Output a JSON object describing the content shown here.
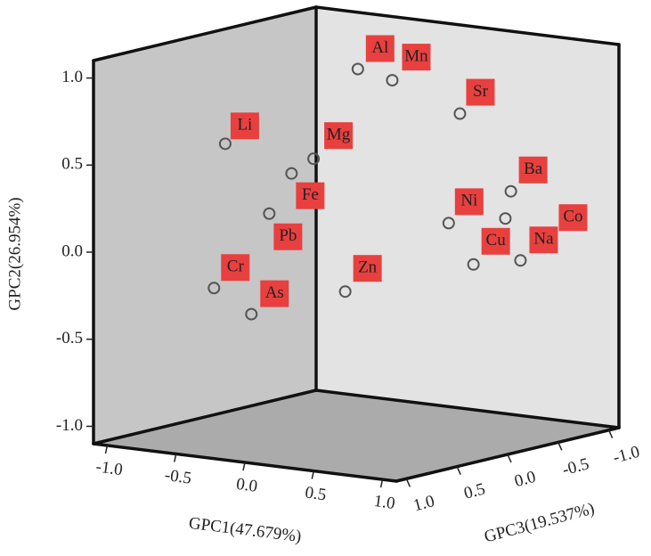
{
  "chart_data": {
    "type": "scatter3d",
    "x_label": "GPC1(47.679%)",
    "y_label": "GPC2(26.954%)",
    "z_label": "GPC3(19.537%)",
    "labels": [
      "Al",
      "Mn",
      "Sr",
      "Li",
      "Mg",
      "Fe",
      "Pb",
      "Ba",
      "Ni",
      "Co",
      "Cu",
      "Na",
      "Cr",
      "As",
      "Zn"
    ],
    "x": [
      -0.15,
      0.1,
      0.43,
      -0.79,
      -0.31,
      -0.47,
      -0.47,
      0.8,
      0.51,
      0.76,
      0.69,
      0.87,
      -0.71,
      -0.6,
      -0.08
    ],
    "y": [
      0.96,
      0.92,
      0.73,
      0.53,
      0.46,
      0.36,
      0.16,
      0.32,
      0.14,
      0.16,
      -0.08,
      -0.07,
      -0.26,
      -0.43,
      -0.28
    ],
    "z": [
      -0.22,
      -0.22,
      -0.44,
      0.22,
      0,
      0,
      0.22,
      -0.44,
      -0.22,
      -0.44,
      -0.22,
      -0.44,
      0.44,
      0.22,
      0
    ],
    "xlim": [
      -1.1,
      1.1
    ],
    "ylim": [
      -1.1,
      1.1
    ],
    "zlim": [
      -1.1,
      1.1
    ],
    "xticks": [
      {
        "value": -1,
        "label": "-1.0"
      },
      {
        "value": -0.5,
        "label": "-0.5"
      },
      {
        "value": 0,
        "label": "0.0"
      },
      {
        "value": 0.5,
        "label": "0.5"
      },
      {
        "value": 1,
        "label": "1.0"
      }
    ],
    "yticks": [
      {
        "value": -1,
        "label": "-1.0"
      },
      {
        "value": -0.5,
        "label": "-0.5"
      },
      {
        "value": 0,
        "label": "0.0"
      },
      {
        "value": 0.5,
        "label": "0.5"
      },
      {
        "value": 1,
        "label": "1.0"
      }
    ],
    "zticks": [
      {
        "value": -1,
        "label": "-1.0"
      },
      {
        "value": -0.5,
        "label": "-0.5"
      },
      {
        "value": 0,
        "label": "0.0"
      },
      {
        "value": 0.5,
        "label": "0.5"
      },
      {
        "value": 1,
        "label": "1.0"
      }
    ],
    "label_color": "#e8403f",
    "marker_color": "#555555",
    "left_wall_color": "#c6c6c6",
    "right_wall_color": "#e3e3e3",
    "floor_color": "#ababab"
  }
}
